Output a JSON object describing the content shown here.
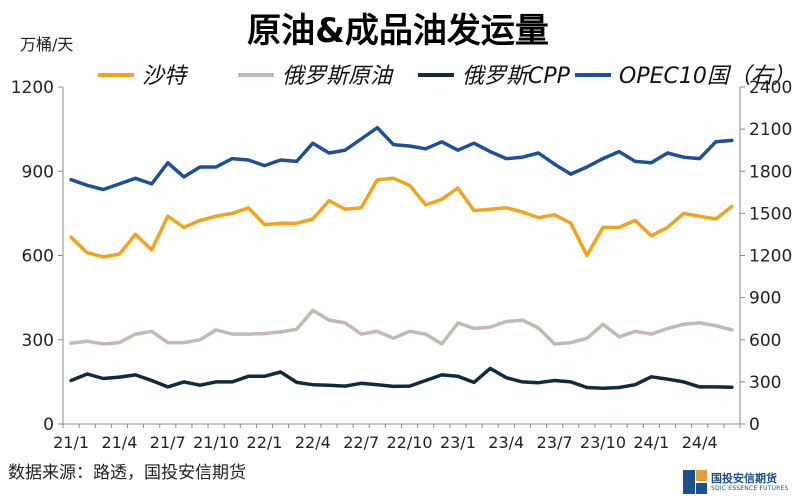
{
  "title": "原油&成品油发运量",
  "unit_label": "万桶/天",
  "source": "数据来源：路透，国投安信期货",
  "logo": {
    "cn": "国投安信期货",
    "en": "SDIC ESSENCE FUTURES"
  },
  "colors": {
    "series1": "#f2a31c",
    "series2": "#c4b8b2",
    "series3": "#0f2c3e",
    "series4": "#1d4f9c"
  },
  "chart_data": {
    "type": "line",
    "title": "原油&成品油发运量",
    "ylabel": "万桶/天",
    "ylim_left": [
      0,
      1200
    ],
    "ylim_right": [
      0,
      2400
    ],
    "yticks_left": [
      0,
      300,
      600,
      900,
      1200
    ],
    "yticks_right": [
      0,
      300,
      600,
      900,
      1200,
      1500,
      1800,
      2100,
      2400
    ],
    "x_tick_labels": [
      "21/1",
      "21/4",
      "21/7",
      "21/10",
      "22/1",
      "22/4",
      "22/7",
      "22/10",
      "23/1",
      "23/4",
      "23/7",
      "23/10",
      "24/1",
      "24/4"
    ],
    "x_tick_every": 3,
    "legend_placement": "top",
    "grid": false,
    "series": [
      {
        "name": "沙特",
        "axis": "left",
        "values": [
          665,
          610,
          595,
          605,
          675,
          620,
          740,
          700,
          725,
          740,
          750,
          770,
          710,
          715,
          715,
          730,
          795,
          765,
          770,
          870,
          875,
          850,
          780,
          800,
          840,
          760,
          765,
          770,
          755,
          735,
          745,
          715,
          600,
          700,
          700,
          725,
          670,
          700,
          750,
          740,
          730,
          775
        ]
      },
      {
        "name": "俄罗斯原油",
        "axis": "left",
        "values": [
          288,
          295,
          285,
          290,
          320,
          330,
          290,
          290,
          300,
          335,
          320,
          320,
          322,
          328,
          337,
          405,
          370,
          360,
          320,
          330,
          305,
          330,
          320,
          285,
          360,
          340,
          345,
          365,
          370,
          342,
          285,
          290,
          305,
          355,
          310,
          330,
          320,
          340,
          355,
          360,
          350,
          335
        ]
      },
      {
        "name": "俄罗斯CPP",
        "axis": "left",
        "values": [
          155,
          178,
          162,
          167,
          175,
          155,
          132,
          150,
          138,
          150,
          150,
          170,
          170,
          185,
          148,
          140,
          138,
          135,
          145,
          140,
          134,
          135,
          155,
          175,
          170,
          148,
          198,
          165,
          150,
          147,
          155,
          150,
          130,
          127,
          130,
          140,
          168,
          160,
          150,
          132,
          132,
          131
        ]
      },
      {
        "name": "OPEC10国（右）",
        "axis": "right",
        "values": [
          1740,
          1700,
          1670,
          1710,
          1750,
          1710,
          1860,
          1760,
          1830,
          1830,
          1890,
          1880,
          1840,
          1880,
          1870,
          2000,
          1930,
          1950,
          2030,
          2110,
          1990,
          1980,
          1960,
          2010,
          1950,
          2000,
          1940,
          1890,
          1900,
          1930,
          1850,
          1780,
          1830,
          1890,
          1940,
          1870,
          1860,
          1930,
          1900,
          1890,
          2010,
          2020
        ]
      }
    ]
  }
}
